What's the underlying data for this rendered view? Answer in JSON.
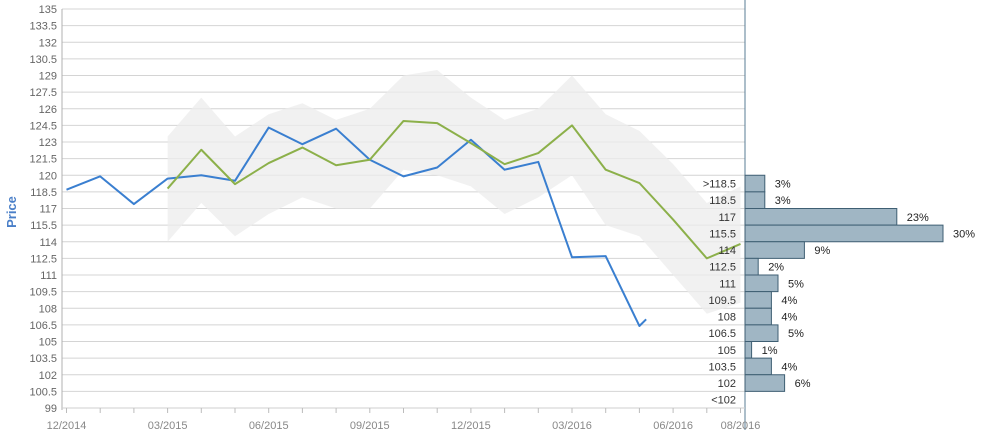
{
  "colors": {
    "blue": "#3a7fd0",
    "green": "#8cb04a",
    "band": "#ececec",
    "grid": "#d4d4d4",
    "bar_fill": "#a0b6c4",
    "bar_stroke": "#3f5f73",
    "axis_label": "#4a7fc8"
  },
  "chart_data": {
    "type": "line",
    "ylabel": "Price",
    "ylim": [
      99,
      135
    ],
    "y_ticks": [
      "135",
      "133.5",
      "132",
      "130.5",
      "129",
      "127.5",
      "126",
      "124.5",
      "123",
      "121.5",
      "120",
      "118.5",
      "117",
      "115.5",
      "114",
      "112.5",
      "111",
      "109.5",
      "108",
      "106.5",
      "105",
      "103.5",
      "102",
      "100.5",
      "99"
    ],
    "x_tick_labels": [
      "12/2014",
      "03/2015",
      "06/2015",
      "09/2015",
      "12/2015",
      "03/2016",
      "06/2016",
      "08/2016"
    ],
    "x_months": [
      "12/2014",
      "01/2015",
      "02/2015",
      "03/2015",
      "04/2015",
      "05/2015",
      "06/2015",
      "07/2015",
      "08/2015",
      "09/2015",
      "10/2015",
      "11/2015",
      "12/2015",
      "01/2016",
      "02/2016",
      "03/2016",
      "04/2016",
      "05/2016",
      "06/2016",
      "07/2016",
      "08/2016"
    ],
    "series": [
      {
        "color": "blue",
        "points": [
          {
            "x": 0,
            "y": 118.7
          },
          {
            "x": 1,
            "y": 119.9
          },
          {
            "x": 2,
            "y": 117.4
          },
          {
            "x": 3,
            "y": 119.7
          },
          {
            "x": 4,
            "y": 120.0
          },
          {
            "x": 5,
            "y": 119.5
          },
          {
            "x": 6,
            "y": 124.3
          },
          {
            "x": 7,
            "y": 122.8
          },
          {
            "x": 8,
            "y": 124.2
          },
          {
            "x": 9,
            "y": 121.4
          },
          {
            "x": 10,
            "y": 119.9
          },
          {
            "x": 11,
            "y": 120.7
          },
          {
            "x": 12,
            "y": 123.2
          },
          {
            "x": 13,
            "y": 120.5
          },
          {
            "x": 14,
            "y": 121.2
          },
          {
            "x": 15,
            "y": 112.6
          },
          {
            "x": 16,
            "y": 112.7
          },
          {
            "x": 17,
            "y": 106.4
          },
          {
            "x": 17.2,
            "y": 107.0
          }
        ]
      },
      {
        "color": "green",
        "points": [
          {
            "x": 3,
            "y": 118.8
          },
          {
            "x": 4,
            "y": 122.3
          },
          {
            "x": 5,
            "y": 119.2
          },
          {
            "x": 6,
            "y": 121.1
          },
          {
            "x": 7,
            "y": 122.5
          },
          {
            "x": 8,
            "y": 120.9
          },
          {
            "x": 9,
            "y": 121.4
          },
          {
            "x": 10,
            "y": 124.9
          },
          {
            "x": 11,
            "y": 124.7
          },
          {
            "x": 12,
            "y": 122.9
          },
          {
            "x": 13,
            "y": 121.0
          },
          {
            "x": 14,
            "y": 122.0
          },
          {
            "x": 15,
            "y": 124.5
          },
          {
            "x": 16,
            "y": 120.5
          },
          {
            "x": 17,
            "y": 119.3
          },
          {
            "x": 18,
            "y": 116.0
          },
          {
            "x": 19,
            "y": 112.5
          },
          {
            "x": 20,
            "y": 113.8
          }
        ]
      }
    ],
    "range_band": {
      "upper": [
        {
          "x": 3,
          "y": 123.5
        },
        {
          "x": 4,
          "y": 127.0
        },
        {
          "x": 5,
          "y": 123.5
        },
        {
          "x": 6,
          "y": 125.5
        },
        {
          "x": 7,
          "y": 126.5
        },
        {
          "x": 8,
          "y": 125.0
        },
        {
          "x": 9,
          "y": 126.0
        },
        {
          "x": 10,
          "y": 129.0
        },
        {
          "x": 11,
          "y": 129.5
        },
        {
          "x": 12,
          "y": 127.0
        },
        {
          "x": 13,
          "y": 125.0
        },
        {
          "x": 14,
          "y": 126.0
        },
        {
          "x": 15,
          "y": 129.0
        },
        {
          "x": 16,
          "y": 125.5
        },
        {
          "x": 17,
          "y": 124.0
        },
        {
          "x": 18,
          "y": 121.0
        },
        {
          "x": 19,
          "y": 117.5
        },
        {
          "x": 20,
          "y": 119.0
        }
      ],
      "lower": [
        {
          "x": 3,
          "y": 114.0
        },
        {
          "x": 4,
          "y": 117.5
        },
        {
          "x": 5,
          "y": 114.5
        },
        {
          "x": 6,
          "y": 116.5
        },
        {
          "x": 7,
          "y": 118.0
        },
        {
          "x": 8,
          "y": 117.0
        },
        {
          "x": 9,
          "y": 117.0
        },
        {
          "x": 10,
          "y": 120.5
        },
        {
          "x": 11,
          "y": 120.0
        },
        {
          "x": 12,
          "y": 119.0
        },
        {
          "x": 13,
          "y": 116.5
        },
        {
          "x": 14,
          "y": 118.0
        },
        {
          "x": 15,
          "y": 120.0
        },
        {
          "x": 16,
          "y": 115.5
        },
        {
          "x": 17,
          "y": 114.5
        },
        {
          "x": 18,
          "y": 111.0
        },
        {
          "x": 19,
          "y": 107.5
        },
        {
          "x": 20,
          "y": 108.5
        }
      ]
    },
    "distribution": {
      "bins": [
        {
          "label": ">118.5",
          "pct_label": "3%",
          "pct": 3
        },
        {
          "label": "118.5",
          "pct_label": "3%",
          "pct": 3
        },
        {
          "label": "117",
          "pct_label": "23%",
          "pct": 23
        },
        {
          "label": "115.5",
          "pct_label": "30%",
          "pct": 30
        },
        {
          "label": "114",
          "pct_label": "9%",
          "pct": 9
        },
        {
          "label": "112.5",
          "pct_label": "2%",
          "pct": 2
        },
        {
          "label": "111",
          "pct_label": "5%",
          "pct": 5
        },
        {
          "label": "109.5",
          "pct_label": "4%",
          "pct": 4
        },
        {
          "label": "108",
          "pct_label": "4%",
          "pct": 4
        },
        {
          "label": "106.5",
          "pct_label": "5%",
          "pct": 5
        },
        {
          "label": "105",
          "pct_label": "1%",
          "pct": 1
        },
        {
          "label": "103.5",
          "pct_label": "4%",
          "pct": 4
        },
        {
          "label": "102",
          "pct_label": "6%",
          "pct": 6
        },
        {
          "label": "<102",
          "pct_label": "",
          "pct": 0
        }
      ]
    }
  }
}
